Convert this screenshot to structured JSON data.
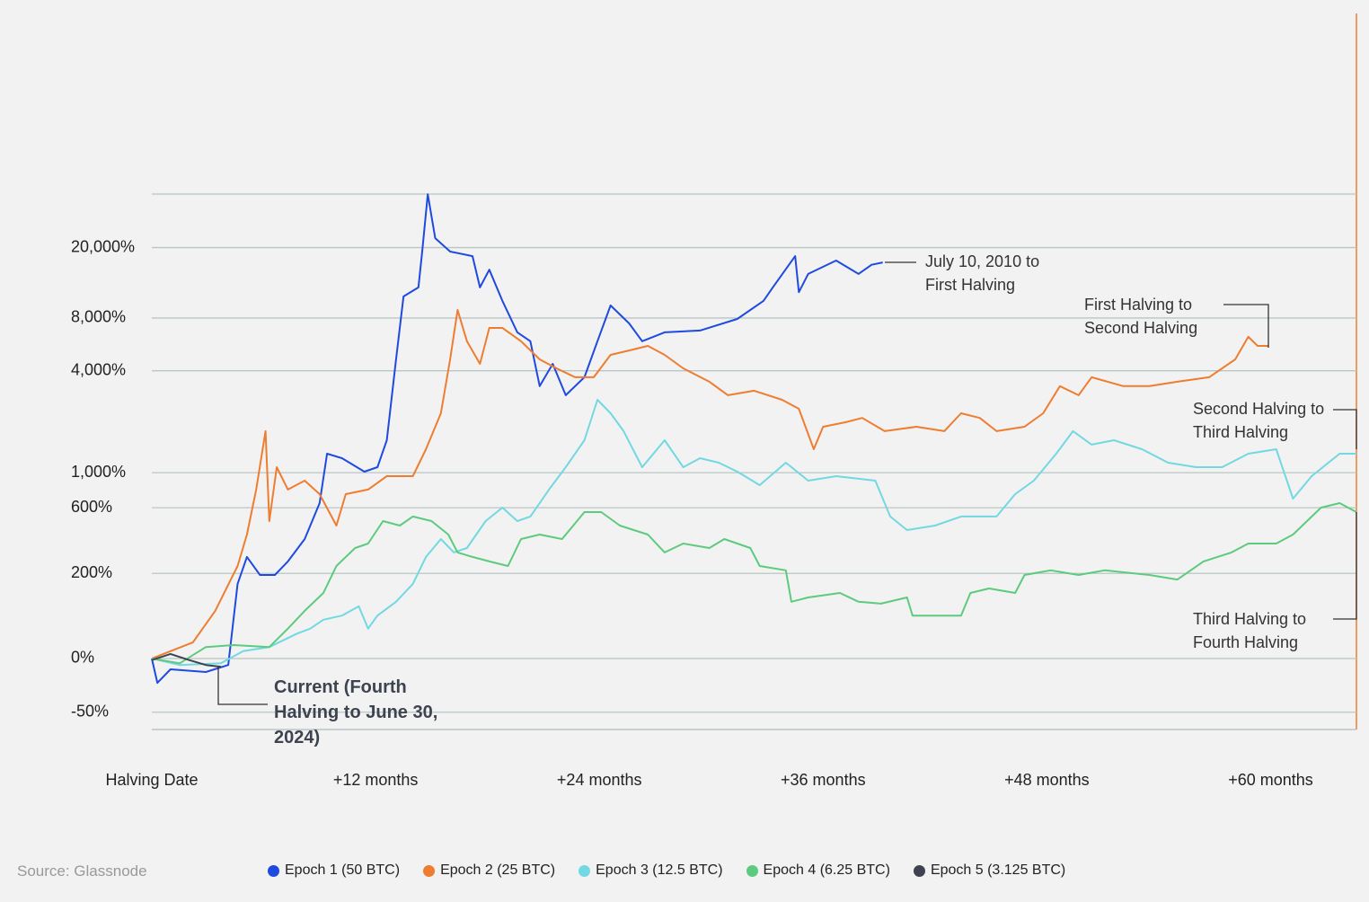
{
  "chart_data": {
    "type": "line",
    "yscale": "log1p",
    "source": "Source: Glassnode",
    "xlim": [
      0,
      64.6
    ],
    "xticks": [
      {
        "value": 0,
        "label": "Halving Date"
      },
      {
        "value": 12,
        "label": "+12 months"
      },
      {
        "value": 24,
        "label": "+24 months"
      },
      {
        "value": 36,
        "label": "+36 months"
      },
      {
        "value": 48,
        "label": "+48 months"
      },
      {
        "value": 60,
        "label": "+60 months"
      }
    ],
    "ylim": [
      -60,
      40000
    ],
    "yticks": [
      {
        "value": 20000,
        "label": "20,000%"
      },
      {
        "value": 8000,
        "label": "8,000%"
      },
      {
        "value": 4000,
        "label": "4,000%"
      },
      {
        "value": 1000,
        "label": "1,000%"
      },
      {
        "value": 600,
        "label": "600%"
      },
      {
        "value": 200,
        "label": "200%"
      },
      {
        "value": 0,
        "label": "0%"
      },
      {
        "value": -50,
        "label": "-50%"
      }
    ],
    "grid": true,
    "series": [
      {
        "name": "Epoch 1 (50 BTC)",
        "color": "#1f4ae0",
        "x": [
          0,
          0.3,
          1.0,
          2.9,
          4.1,
          4.6,
          5.1,
          5.8,
          6.6,
          7.3,
          8.2,
          9.0,
          9.4,
          10.2,
          11.4,
          12.1,
          12.6,
          13.1,
          13.5,
          14.3,
          14.5,
          14.8,
          15.2,
          16.0,
          17.2,
          17.6,
          18.1,
          18.8,
          19.6,
          20.3,
          20.8,
          21.5,
          22.2,
          23.2,
          23.9,
          24.6,
          25.6,
          26.3,
          27.5,
          29.4,
          31.4,
          32.8,
          33.3,
          34.5,
          34.7,
          35.2,
          36.7,
          37.9,
          38.6,
          39.2
        ],
        "values": [
          0,
          -27,
          -13,
          -16,
          -8,
          162,
          271,
          194,
          194,
          250,
          367,
          643,
          1306,
          1227,
          1015,
          1082,
          1573,
          4650,
          10590,
          11920,
          19000,
          39900,
          22600,
          19000,
          17900,
          11920,
          15000,
          10000,
          6630,
          5900,
          3260,
          4380,
          2890,
          3670,
          5900,
          9420,
          7450,
          5900,
          6630,
          6790,
          7900,
          10000,
          11920,
          17900,
          11200,
          14200,
          16900,
          14200,
          16000,
          16500
        ]
      },
      {
        "name": "Epoch 2 (25 BTC)",
        "color": "#ee7d30",
        "x": [
          0,
          1.0,
          2.2,
          3.4,
          4.6,
          5.1,
          5.6,
          6.1,
          6.3,
          6.7,
          7.3,
          8.2,
          9.0,
          9.9,
          10.4,
          11.6,
          12.6,
          14.0,
          14.7,
          15.5,
          16.0,
          16.4,
          16.9,
          17.6,
          18.1,
          18.8,
          19.8,
          20.8,
          21.7,
          22.7,
          23.7,
          24.6,
          25.6,
          26.6,
          27.5,
          28.5,
          29.9,
          30.9,
          32.3,
          33.8,
          34.7,
          35.5,
          36.0,
          37.2,
          38.1,
          39.3,
          41.0,
          42.5,
          43.4,
          44.4,
          45.3,
          46.8,
          47.8,
          48.7,
          49.7,
          50.4,
          52.1,
          53.5,
          55.0,
          56.7,
          58.1,
          58.8,
          59.3,
          59.9
        ],
        "values": [
          0,
          10,
          23,
          85,
          230,
          395,
          785,
          1780,
          489,
          1082,
          785,
          893,
          734,
          456,
          734,
          785,
          952,
          952,
          1390,
          2270,
          4650,
          8890,
          5900,
          4380,
          7030,
          7030,
          5900,
          4650,
          4130,
          3670,
          3670,
          4930,
          5230,
          5550,
          4930,
          4130,
          3460,
          2890,
          3070,
          2720,
          2410,
          1390,
          1890,
          2010,
          2130,
          1780,
          1890,
          1780,
          2270,
          2130,
          1780,
          1890,
          2270,
          3260,
          2890,
          3670,
          3260,
          3260,
          3460,
          3670,
          4650,
          6250,
          5550,
          5550
        ]
      },
      {
        "name": "Epoch 3 (12.5 BTC)",
        "color": "#72d8e2",
        "x": [
          0,
          1.5,
          3.7,
          4.9,
          6.3,
          7.8,
          8.5,
          9.2,
          10.2,
          11.1,
          11.6,
          12.1,
          13.1,
          14.0,
          14.7,
          15.5,
          16.2,
          16.9,
          17.9,
          18.8,
          19.6,
          20.3,
          21.3,
          22.2,
          23.2,
          23.9,
          24.6,
          25.3,
          26.3,
          27.5,
          28.5,
          29.4,
          30.4,
          31.4,
          32.6,
          34.0,
          35.2,
          36.7,
          38.8,
          39.6,
          40.5,
          42.0,
          43.4,
          45.3,
          46.3,
          47.3,
          48.5,
          49.4,
          50.4,
          51.6,
          53.1,
          54.5,
          56.0,
          57.4,
          58.8,
          60.3,
          61.2,
          62.2,
          63.7,
          64.6
        ],
        "values": [
          0,
          -8,
          -6,
          10,
          16,
          38,
          47,
          65,
          74,
          96,
          47,
          74,
          108,
          162,
          271,
          367,
          293,
          316,
          489,
          601,
          489,
          525,
          785,
          1082,
          1573,
          2720,
          2270,
          1780,
          1082,
          1573,
          1082,
          1227,
          1152,
          1015,
          837,
          1152,
          893,
          952,
          893,
          525,
          425,
          456,
          525,
          525,
          734,
          893,
          1306,
          1780,
          1480,
          1573,
          1390,
          1152,
          1082,
          1082,
          1306,
          1390,
          687,
          952,
          1306,
          1306
        ]
      },
      {
        "name": "Epoch 4 (6.25 BTC)",
        "color": "#5ccb7e",
        "x": [
          0,
          1.5,
          2.9,
          4.4,
          6.3,
          7.3,
          8.2,
          9.2,
          9.9,
          10.9,
          11.6,
          12.4,
          13.3,
          14.0,
          15.0,
          15.9,
          16.4,
          17.2,
          18.1,
          19.1,
          19.8,
          20.8,
          22.0,
          23.2,
          24.1,
          25.1,
          26.6,
          27.5,
          28.5,
          29.9,
          30.7,
          32.1,
          32.6,
          34.0,
          34.3,
          35.2,
          36.9,
          37.9,
          39.1,
          40.5,
          40.8,
          42.0,
          43.4,
          43.9,
          44.9,
          46.3,
          46.8,
          48.2,
          49.7,
          51.1,
          53.5,
          55.0,
          56.4,
          57.9,
          58.8,
          60.3,
          61.2,
          62.7,
          63.7,
          64.6
        ],
        "values": [
          0,
          -6,
          16,
          19,
          16,
          47,
          85,
          133,
          230,
          316,
          341,
          489,
          456,
          525,
          489,
          395,
          293,
          271,
          250,
          230,
          367,
          395,
          367,
          562,
          562,
          456,
          395,
          293,
          341,
          316,
          367,
          316,
          230,
          212,
          108,
          120,
          133,
          108,
          103,
          120,
          74,
          74,
          74,
          133,
          147,
          133,
          194,
          212,
          194,
          212,
          194,
          177,
          250,
          293,
          341,
          341,
          395,
          601,
          643,
          562
        ]
      },
      {
        "name": "Epoch 5 (3.125 BTC)",
        "color": "#3d4450",
        "x": [
          0,
          1.0,
          2.0,
          2.9,
          3.7
        ],
        "values": [
          -2,
          6,
          -2,
          -8,
          -10
        ]
      }
    ],
    "annotations": [
      "July 10, 2010 to First Halving",
      "First Halving to Second Halving",
      "Second Halving to Third Halving",
      "Third Halving to Fourth Halving",
      "Current (Fourth Halving to June 30, 2024)"
    ]
  }
}
